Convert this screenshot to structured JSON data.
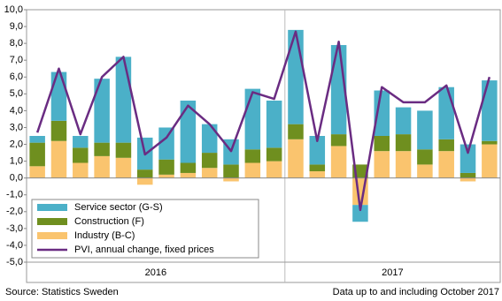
{
  "chart_data": {
    "type": "bar",
    "stacked": true,
    "categories": [
      null,
      null,
      null,
      null,
      null,
      null,
      null,
      null,
      null,
      null,
      null,
      null,
      null,
      null,
      null,
      null,
      null,
      null,
      null,
      null,
      null,
      null
    ],
    "year_labels": [
      "2016",
      "2017"
    ],
    "series": [
      {
        "name": "Industry (B-C)",
        "color": "#fac46e",
        "type": "bar",
        "values": [
          0.7,
          2.2,
          0.9,
          1.3,
          1.2,
          -0.4,
          0.2,
          0.3,
          0.6,
          -0.2,
          0.9,
          1.0,
          2.3,
          0.4,
          1.9,
          -1.6,
          1.6,
          1.6,
          0.8,
          1.6,
          -0.2,
          2.0
        ]
      },
      {
        "name": "Construction (F)",
        "color": "#6f8f1f",
        "type": "bar",
        "values": [
          1.4,
          1.2,
          0.9,
          0.8,
          0.9,
          0.5,
          0.9,
          0.6,
          0.9,
          0.8,
          0.8,
          0.8,
          0.9,
          0.4,
          0.7,
          0.8,
          0.9,
          1.0,
          0.9,
          0.7,
          0.3,
          0.2
        ]
      },
      {
        "name": "Service sector (G-S)",
        "color": "#4bb0c8",
        "type": "bar",
        "values": [
          0.4,
          2.9,
          0.7,
          3.8,
          5.1,
          1.9,
          1.9,
          3.7,
          1.7,
          1.5,
          3.6,
          2.8,
          5.6,
          1.7,
          5.3,
          -1.0,
          2.7,
          1.6,
          2.3,
          3.1,
          1.7,
          3.6
        ]
      },
      {
        "name": "PVI, annual change, fixed prices",
        "color": "#6a2c82",
        "type": "line",
        "values": [
          2.7,
          6.5,
          2.6,
          6.0,
          7.2,
          1.4,
          2.4,
          4.3,
          3.2,
          1.6,
          5.1,
          4.7,
          8.7,
          2.2,
          8.1,
          -1.9,
          5.4,
          4.5,
          4.5,
          5.5,
          1.5,
          6.0
        ]
      }
    ],
    "ylim": [
      -5,
      10
    ],
    "yticks": [
      {
        "value": -5,
        "label": "-5,0"
      },
      {
        "value": -4,
        "label": "-4,0"
      },
      {
        "value": -3,
        "label": "-3,0"
      },
      {
        "value": -2,
        "label": "-2,0"
      },
      {
        "value": -1,
        "label": "-1,0"
      },
      {
        "value": 0,
        "label": "0,0"
      },
      {
        "value": 1,
        "label": "1,0"
      },
      {
        "value": 2,
        "label": "2,0"
      },
      {
        "value": 3,
        "label": "3,0"
      },
      {
        "value": 4,
        "label": "4,0"
      },
      {
        "value": 5,
        "label": "5,0"
      },
      {
        "value": 6,
        "label": "6,0"
      },
      {
        "value": 7,
        "label": "7,0"
      },
      {
        "value": 8,
        "label": "8,0"
      },
      {
        "value": 9,
        "label": "9,0"
      },
      {
        "value": 10,
        "label": "10,0"
      }
    ],
    "grid": false,
    "legend": "lower-left",
    "source": "Source: Statistics Sweden",
    "note": "Data up to and including October 2017"
  }
}
